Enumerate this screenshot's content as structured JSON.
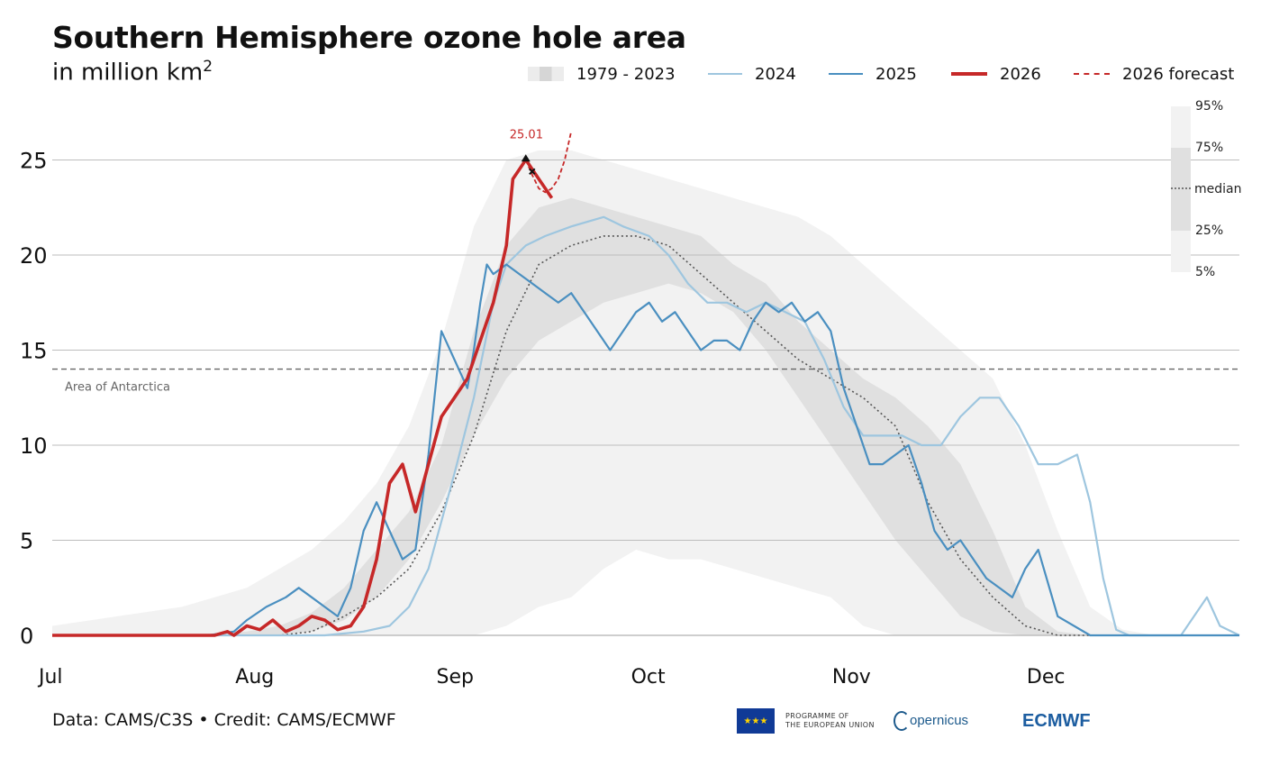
{
  "header": {
    "title": "Southern Hemisphere ozone hole area",
    "subtitle_prefix": "in million km",
    "subtitle_exp": "2"
  },
  "legend": {
    "climatology": "1979 - 2023",
    "s2024": "2024",
    "s2025": "2025",
    "s2026": "2026",
    "forecast": "2026 forecast"
  },
  "percentile_legend": [
    "95%",
    "75%",
    "median",
    "25%",
    "5%"
  ],
  "credit": "Data: CAMS/C3S • Credit: CAMS/ECMWF",
  "logos": {
    "eu_line1": "PROGRAMME OF",
    "eu_line2": "THE EUROPEAN UNION",
    "copernicus": "opernicus",
    "ecmwf": "ECMWF"
  },
  "colors": {
    "s2024": "#9ec6df",
    "s2025": "#4a8fc0",
    "s2026": "#c62828",
    "median": "#555555",
    "band_outer": "#f2f2f2",
    "band_inner": "#e0e0e0",
    "gridline": "#bdbdbd",
    "antarctica": "#666666"
  },
  "chart_data": {
    "type": "line",
    "ylabel": "",
    "xlabel": "",
    "ylim": [
      0,
      27
    ],
    "xlim_days": [
      0,
      183
    ],
    "yticks": [
      0,
      5,
      10,
      15,
      20,
      25
    ],
    "xticks": [
      {
        "day": 0,
        "label": "Jul"
      },
      {
        "day": 31,
        "label": "Aug"
      },
      {
        "day": 62,
        "label": "Sep"
      },
      {
        "day": 92,
        "label": "Oct"
      },
      {
        "day": 123,
        "label": "Nov"
      },
      {
        "day": 153,
        "label": "Dec"
      }
    ],
    "reference_line": {
      "y": 14,
      "label": "Area of Antarctica"
    },
    "peak_annotation": {
      "day": 73,
      "y": 25.01,
      "label": "25.01"
    },
    "climatology": {
      "name": "1979 - 2023",
      "day": [
        0,
        10,
        20,
        30,
        35,
        40,
        45,
        50,
        55,
        60,
        65,
        70,
        75,
        80,
        85,
        90,
        95,
        100,
        105,
        110,
        115,
        120,
        125,
        130,
        135,
        140,
        145,
        150,
        155,
        160,
        165,
        170,
        175,
        180,
        183
      ],
      "p5": [
        0,
        0,
        0,
        0,
        0,
        0,
        0,
        0,
        0,
        0,
        0,
        0.5,
        1.5,
        2.0,
        3.5,
        4.5,
        4.0,
        4.0,
        3.5,
        3.0,
        2.5,
        2.0,
        0.5,
        0,
        0,
        0,
        0,
        0,
        0,
        0,
        0,
        0,
        0,
        0,
        0
      ],
      "p25": [
        0,
        0,
        0,
        0,
        0,
        0.2,
        0.8,
        2.0,
        4.0,
        7.0,
        10.5,
        13.5,
        15.5,
        16.5,
        17.5,
        18.0,
        18.5,
        18.0,
        17.0,
        15.0,
        12.5,
        10.0,
        7.5,
        5.0,
        3.0,
        1.0,
        0.2,
        0,
        0,
        0,
        0,
        0,
        0,
        0,
        0
      ],
      "median": [
        0,
        0,
        0,
        0,
        0,
        0.2,
        1.0,
        2.0,
        3.5,
        6.5,
        10.5,
        16.0,
        19.5,
        20.5,
        21.0,
        21.0,
        20.5,
        19.0,
        17.5,
        16.0,
        14.5,
        13.5,
        12.5,
        11.0,
        7.0,
        4.0,
        2.0,
        0.5,
        0,
        0,
        0,
        0,
        0,
        0,
        0
      ],
      "p75": [
        0,
        0,
        0,
        0.2,
        0.5,
        1.2,
        2.5,
        4.5,
        6.5,
        10.0,
        16.0,
        20.5,
        22.5,
        23.0,
        22.5,
        22.0,
        21.5,
        21.0,
        19.5,
        18.5,
        16.5,
        15.0,
        13.5,
        12.5,
        11.0,
        9.0,
        5.5,
        1.5,
        0.2,
        0,
        0,
        0,
        0,
        0,
        0
      ],
      "p95": [
        0.5,
        1.0,
        1.5,
        2.5,
        3.5,
        4.5,
        6.0,
        8.0,
        11.0,
        15.5,
        21.5,
        25.0,
        25.5,
        25.5,
        25.0,
        24.5,
        24.0,
        23.5,
        23.0,
        22.5,
        22.0,
        21.0,
        19.5,
        18.0,
        16.5,
        15.0,
        13.5,
        10.0,
        5.5,
        1.5,
        0.3,
        0,
        0,
        0,
        0
      ]
    },
    "series": [
      {
        "name": "2024",
        "day": [
          0,
          42,
          48,
          52,
          55,
          58,
          60,
          62,
          65,
          68,
          70,
          73,
          76,
          80,
          85,
          88,
          92,
          95,
          98,
          101,
          104,
          107,
          110,
          113,
          116,
          119,
          122,
          125,
          128,
          131,
          134,
          137,
          140,
          143,
          146,
          149,
          152,
          155,
          158,
          160,
          162,
          164,
          166,
          168,
          170,
          172,
          174,
          176,
          178,
          180,
          183
        ],
        "y": [
          0,
          0,
          0.2,
          0.5,
          1.5,
          3.5,
          6.0,
          8.5,
          12.5,
          17.5,
          19.5,
          20.5,
          21.0,
          21.5,
          22.0,
          21.5,
          21.0,
          20.0,
          18.5,
          17.5,
          17.5,
          17.0,
          17.5,
          17.0,
          16.5,
          14.5,
          12.0,
          10.5,
          10.5,
          10.5,
          10.0,
          10.0,
          11.5,
          12.5,
          12.5,
          11.0,
          9.0,
          9.0,
          9.5,
          7.0,
          3.0,
          0.3,
          0,
          0,
          0,
          0,
          0,
          1.0,
          2.0,
          0.5,
          0
        ]
      },
      {
        "name": "2025",
        "day": [
          0,
          24,
          28,
          30,
          33,
          36,
          38,
          40,
          42,
          44,
          46,
          48,
          50,
          52,
          54,
          56,
          58,
          60,
          62,
          64,
          65,
          66,
          67,
          68,
          70,
          72,
          74,
          76,
          78,
          80,
          82,
          84,
          86,
          88,
          90,
          92,
          94,
          96,
          98,
          100,
          102,
          104,
          106,
          108,
          110,
          112,
          114,
          116,
          118,
          120,
          122,
          124,
          126,
          128,
          130,
          132,
          134,
          136,
          138,
          140,
          142,
          144,
          146,
          148,
          150,
          152,
          155,
          160,
          183
        ],
        "y": [
          0,
          0,
          0.2,
          0.8,
          1.5,
          2.0,
          2.5,
          2.0,
          1.5,
          1.0,
          2.5,
          5.5,
          7.0,
          5.5,
          4.0,
          4.5,
          9.5,
          16.0,
          14.5,
          13.0,
          15.0,
          17.5,
          19.5,
          19.0,
          19.5,
          19.0,
          18.5,
          18.0,
          17.5,
          18.0,
          17.0,
          16.0,
          15.0,
          16.0,
          17.0,
          17.5,
          16.5,
          17.0,
          16.0,
          15.0,
          15.5,
          15.5,
          15.0,
          16.5,
          17.5,
          17.0,
          17.5,
          16.5,
          17.0,
          16.0,
          13.0,
          11.0,
          9.0,
          9.0,
          9.5,
          10.0,
          8.0,
          5.5,
          4.5,
          5.0,
          4.0,
          3.0,
          2.5,
          2.0,
          3.5,
          4.5,
          1.0,
          0,
          0
        ]
      },
      {
        "name": "2026",
        "day": [
          0,
          25,
          27,
          28,
          30,
          32,
          34,
          36,
          38,
          40,
          42,
          44,
          46,
          48,
          50,
          52,
          54,
          56,
          58,
          60,
          62,
          64,
          66,
          68,
          70,
          71,
          72,
          73,
          74,
          75,
          76,
          77
        ],
        "y": [
          0,
          0,
          0.2,
          0,
          0.5,
          0.3,
          0.8,
          0.2,
          0.5,
          1.0,
          0.8,
          0.3,
          0.5,
          1.5,
          4.0,
          8.0,
          9.0,
          6.5,
          9.0,
          11.5,
          12.5,
          13.5,
          15.5,
          17.5,
          20.5,
          24.0,
          24.5,
          25.01,
          24.5,
          24.0,
          23.5,
          23.0
        ]
      },
      {
        "name": "2026 forecast",
        "day": [
          73,
          74,
          75,
          76,
          77,
          78,
          79,
          80
        ],
        "y": [
          25.01,
          24.2,
          23.5,
          23.3,
          23.5,
          24.0,
          25.0,
          26.5
        ]
      }
    ]
  }
}
